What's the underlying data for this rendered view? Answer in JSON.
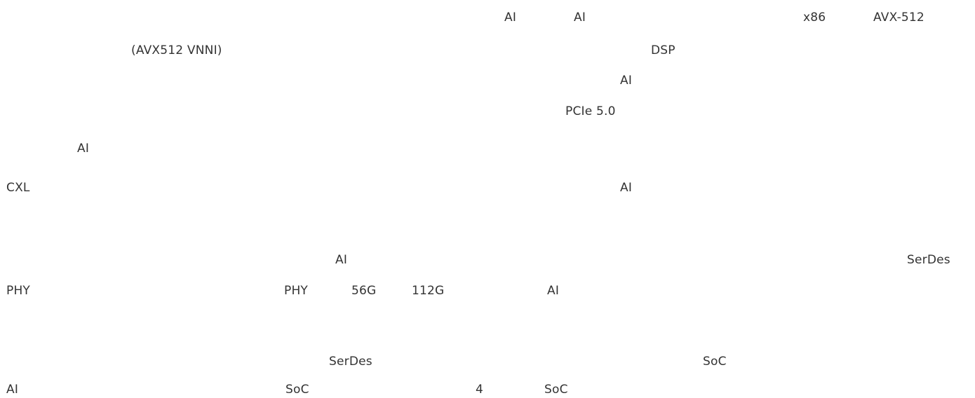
{
  "paragraph_1": {
    "line_1": [
      "AI",
      "AI",
      "x86",
      "AVX-512"
    ],
    "line_2": [
      "(AVX512 VNNI)",
      "DSP"
    ],
    "line_3": [
      "AI"
    ],
    "line_4": [
      "PCIe 5.0"
    ],
    "line_5": [
      "AI"
    ],
    "line_6": [
      "CXL",
      "AI"
    ]
  },
  "paragraph_2": {
    "line_1": [
      "AI",
      "SerDes"
    ],
    "line_2": [
      "PHY",
      "PHY",
      "56G",
      "112G",
      "AI"
    ]
  },
  "paragraph_3": {
    "line_1": [
      "SerDes",
      "SoC"
    ],
    "line_2": [
      "AI",
      "SoC",
      "4",
      "SoC"
    ]
  }
}
